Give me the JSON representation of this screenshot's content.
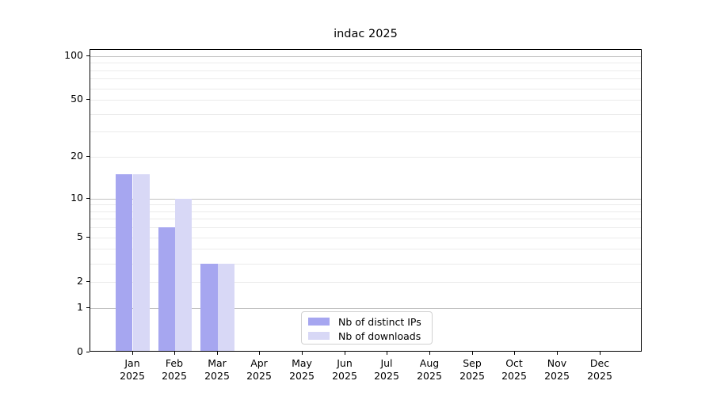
{
  "chart_data": {
    "type": "bar",
    "title": "indac 2025",
    "categories": [
      {
        "month": "Jan",
        "year": "2025"
      },
      {
        "month": "Feb",
        "year": "2025"
      },
      {
        "month": "Mar",
        "year": "2025"
      },
      {
        "month": "Apr",
        "year": "2025"
      },
      {
        "month": "May",
        "year": "2025"
      },
      {
        "month": "Jun",
        "year": "2025"
      },
      {
        "month": "Jul",
        "year": "2025"
      },
      {
        "month": "Aug",
        "year": "2025"
      },
      {
        "month": "Sep",
        "year": "2025"
      },
      {
        "month": "Oct",
        "year": "2025"
      },
      {
        "month": "Nov",
        "year": "2025"
      },
      {
        "month": "Dec",
        "year": "2025"
      }
    ],
    "series": [
      {
        "name": "Nb of distinct IPs",
        "color": "#a6a6f0",
        "values": [
          15,
          6,
          3,
          0,
          0,
          0,
          0,
          0,
          0,
          0,
          0,
          0
        ]
      },
      {
        "name": "Nb of downloads",
        "color": "#d8d8f6",
        "values": [
          15,
          10,
          3,
          0,
          0,
          0,
          0,
          0,
          0,
          0,
          0,
          0
        ]
      }
    ],
    "xlabel": "",
    "ylabel": "",
    "yscale": "log1p",
    "yticks": [
      0,
      1,
      2,
      5,
      10,
      20,
      50,
      100
    ],
    "ylim": [
      0,
      110
    ],
    "grid": {
      "major_color": "#c2c2c2",
      "minor_color": "#ebebeb",
      "major_values": [
        1,
        10,
        100
      ],
      "minor_values": [
        2,
        3,
        4,
        5,
        6,
        7,
        8,
        9,
        20,
        30,
        40,
        50,
        60,
        70,
        80,
        90
      ]
    },
    "legend_position": "lower center",
    "axis_color": "#000000"
  }
}
